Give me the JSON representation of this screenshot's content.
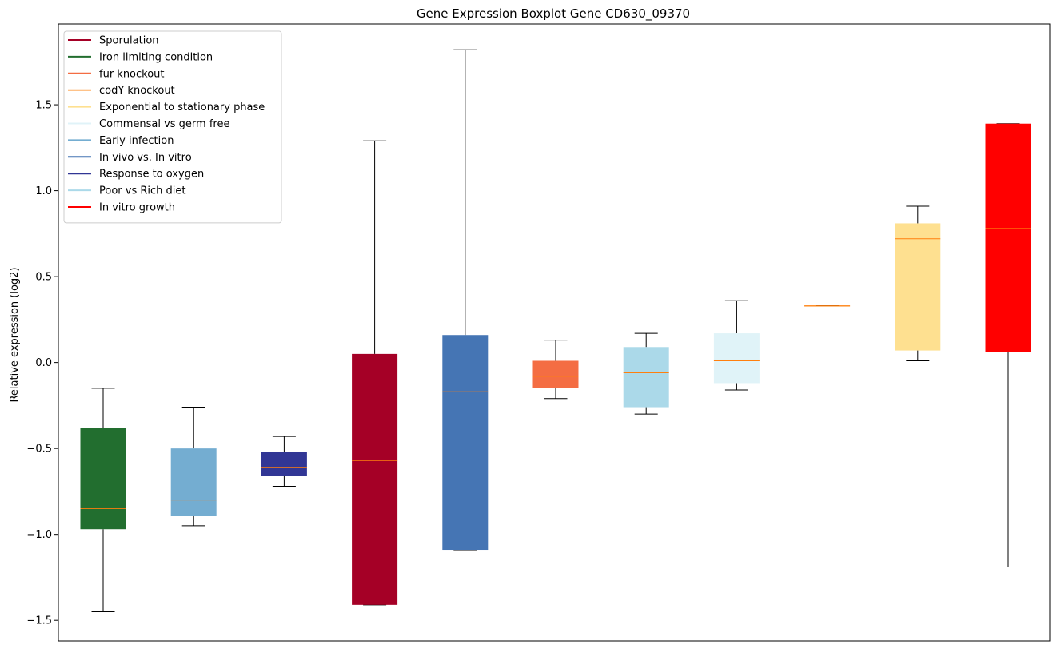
{
  "chart_data": {
    "type": "boxplot",
    "title": "Gene Expression Boxplot Gene CD630_09370",
    "xlabel": "",
    "ylabel": "Relative expression (log2)",
    "ylim": [
      -1.62,
      1.97
    ],
    "yticks": [
      -1.5,
      -1.0,
      -0.5,
      0.0,
      0.5,
      1.0,
      1.5
    ],
    "ytick_labels": [
      "−1.5",
      "−1.0",
      "−0.5",
      "0.0",
      "0.5",
      "1.0",
      "1.5"
    ],
    "median_color": "#ff7f0e",
    "whisker_color": "#000000",
    "legend_position": "upper-left",
    "legend": [
      {
        "label": "Sporulation",
        "color": "#a50026"
      },
      {
        "label": "Iron limiting condition",
        "color": "#226e2f"
      },
      {
        "label": "fur knockout",
        "color": "#f46d43"
      },
      {
        "label": "codY knockout",
        "color": "#fdae61"
      },
      {
        "label": "Exponential to stationary phase",
        "color": "#fee090"
      },
      {
        "label": "Commensal vs germ free",
        "color": "#e0f3f8"
      },
      {
        "label": "Early infection",
        "color": "#74add1"
      },
      {
        "label": "In vivo vs. In vitro",
        "color": "#4575b4"
      },
      {
        "label": "Response to oxygen",
        "color": "#313695"
      },
      {
        "label": "Poor vs Rich diet",
        "color": "#abd9e9"
      },
      {
        "label": "In vitro growth",
        "color": "#ff0000"
      }
    ],
    "boxes": [
      {
        "group": "Iron limiting condition",
        "color": "#226e2f",
        "whisker_low": -1.45,
        "q1": -0.97,
        "median": -0.85,
        "q3": -0.38,
        "whisker_high": -0.15
      },
      {
        "group": "Early infection",
        "color": "#74add1",
        "whisker_low": -0.95,
        "q1": -0.89,
        "median": -0.8,
        "q3": -0.5,
        "whisker_high": -0.26
      },
      {
        "group": "Response to oxygen",
        "color": "#313695",
        "whisker_low": -0.72,
        "q1": -0.66,
        "median": -0.61,
        "q3": -0.52,
        "whisker_high": -0.43
      },
      {
        "group": "Sporulation",
        "color": "#a50026",
        "whisker_low": -1.41,
        "q1": -1.41,
        "median": -0.57,
        "q3": 0.05,
        "whisker_high": 1.29
      },
      {
        "group": "In vivo vs. In vitro",
        "color": "#4575b4",
        "whisker_low": -1.09,
        "q1": -1.09,
        "median": -0.17,
        "q3": 0.16,
        "whisker_high": 1.82
      },
      {
        "group": "fur knockout",
        "color": "#f46d43",
        "whisker_low": -0.21,
        "q1": -0.15,
        "median": -0.08,
        "q3": 0.01,
        "whisker_high": 0.13
      },
      {
        "group": "Poor vs Rich diet",
        "color": "#abd9e9",
        "whisker_low": -0.3,
        "q1": -0.26,
        "median": -0.06,
        "q3": 0.09,
        "whisker_high": 0.17
      },
      {
        "group": "Commensal vs germ free",
        "color": "#e0f3f8",
        "whisker_low": -0.16,
        "q1": -0.12,
        "median": 0.01,
        "q3": 0.17,
        "whisker_high": 0.36
      },
      {
        "group": "codY knockout",
        "color": "#fdae61",
        "whisker_low": 0.33,
        "q1": 0.33,
        "median": 0.33,
        "q3": 0.33,
        "whisker_high": 0.33
      },
      {
        "group": "Exponential to stationary phase",
        "color": "#fee090",
        "whisker_low": 0.01,
        "q1": 0.07,
        "median": 0.72,
        "q3": 0.81,
        "whisker_high": 0.91
      },
      {
        "group": "In vitro growth",
        "color": "#ff0000",
        "whisker_low": -1.19,
        "q1": 0.06,
        "median": 0.78,
        "q3": 1.39,
        "whisker_high": 1.39
      }
    ]
  }
}
